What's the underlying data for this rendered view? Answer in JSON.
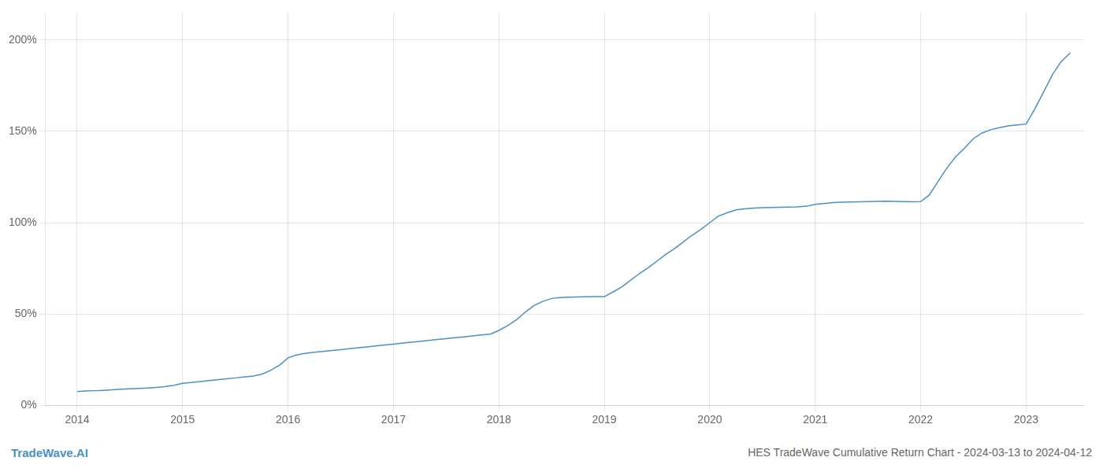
{
  "chart_data": {
    "type": "line",
    "title": "HES TradeWave Cumulative Return Chart - 2024-03-13 to 2024-04-12",
    "annotations": [
      "TradeWave.AI"
    ],
    "color": "#4a90c4",
    "x": [
      2014.0,
      2014.08,
      2014.17,
      2014.25,
      2014.33,
      2014.42,
      2014.5,
      2014.58,
      2014.67,
      2014.75,
      2014.83,
      2014.92,
      2015.0,
      2015.08,
      2015.17,
      2015.25,
      2015.33,
      2015.42,
      2015.5,
      2015.58,
      2015.67,
      2015.75,
      2015.83,
      2015.92,
      2016.0,
      2016.08,
      2016.17,
      2016.25,
      2016.33,
      2016.42,
      2016.5,
      2016.58,
      2016.67,
      2016.75,
      2016.83,
      2016.92,
      2017.0,
      2017.08,
      2017.17,
      2017.25,
      2017.33,
      2017.42,
      2017.5,
      2017.58,
      2017.67,
      2017.75,
      2017.83,
      2017.92,
      2018.0,
      2018.08,
      2018.17,
      2018.25,
      2018.33,
      2018.42,
      2018.5,
      2018.58,
      2018.67,
      2018.75,
      2018.83,
      2018.92,
      2019.0,
      2019.08,
      2019.17,
      2019.25,
      2019.33,
      2019.42,
      2019.5,
      2019.58,
      2019.67,
      2019.75,
      2019.83,
      2019.92,
      2020.0,
      2020.08,
      2020.17,
      2020.25,
      2020.33,
      2020.42,
      2020.5,
      2020.58,
      2020.67,
      2020.75,
      2020.83,
      2020.92,
      2021.0,
      2021.08,
      2021.17,
      2021.25,
      2021.33,
      2021.42,
      2021.5,
      2021.58,
      2021.67,
      2021.75,
      2021.83,
      2021.92,
      2022.0,
      2022.08,
      2022.17,
      2022.25,
      2022.33,
      2022.42,
      2022.5,
      2022.58,
      2022.67,
      2022.75,
      2022.83,
      2022.92,
      2023.0,
      2023.08,
      2023.17,
      2023.25,
      2023.33,
      2023.42
    ],
    "values": [
      7.5,
      7.8,
      8.0,
      8.2,
      8.5,
      8.8,
      9.0,
      9.2,
      9.5,
      9.8,
      10.2,
      11.0,
      12.0,
      12.5,
      13.0,
      13.5,
      14.0,
      14.5,
      15.0,
      15.5,
      16.0,
      17.0,
      19.0,
      22.0,
      26.0,
      27.5,
      28.5,
      29.0,
      29.5,
      30.0,
      30.5,
      31.0,
      31.5,
      32.0,
      32.5,
      33.0,
      33.5,
      34.0,
      34.5,
      35.0,
      35.5,
      36.0,
      36.5,
      37.0,
      37.5,
      38.0,
      38.5,
      39.0,
      41.0,
      43.5,
      47.0,
      51.0,
      54.5,
      57.0,
      58.5,
      59.0,
      59.2,
      59.3,
      59.4,
      59.5,
      59.5,
      62.0,
      65.0,
      68.5,
      72.0,
      75.5,
      79.0,
      82.5,
      86.0,
      89.5,
      93.0,
      96.5,
      100.0,
      103.5,
      105.5,
      107.0,
      107.5,
      108.0,
      108.2,
      108.3,
      108.4,
      108.5,
      108.6,
      109.0,
      110.0,
      110.5,
      111.0,
      111.2,
      111.3,
      111.4,
      111.5,
      111.6,
      111.7,
      111.6,
      111.5,
      111.4,
      111.5,
      115.0,
      123.0,
      130.0,
      136.0,
      141.0,
      146.0,
      149.0,
      151.0,
      152.0,
      153.0,
      153.5,
      154.0,
      162.0,
      172.0,
      181.0,
      188.0,
      193.0
    ],
    "xlim": [
      2013.7,
      2023.55
    ],
    "xticks": [
      2014,
      2015,
      2016,
      2017,
      2018,
      2019,
      2020,
      2021,
      2022,
      2023
    ],
    "ylim": [
      0,
      215
    ],
    "yticks": [
      {
        "value": 0,
        "label": "0%"
      },
      {
        "value": 50,
        "label": "50%"
      },
      {
        "value": 100,
        "label": "100%"
      },
      {
        "value": 150,
        "label": "150%"
      },
      {
        "value": 200,
        "label": "200%"
      }
    ],
    "grid": true
  }
}
